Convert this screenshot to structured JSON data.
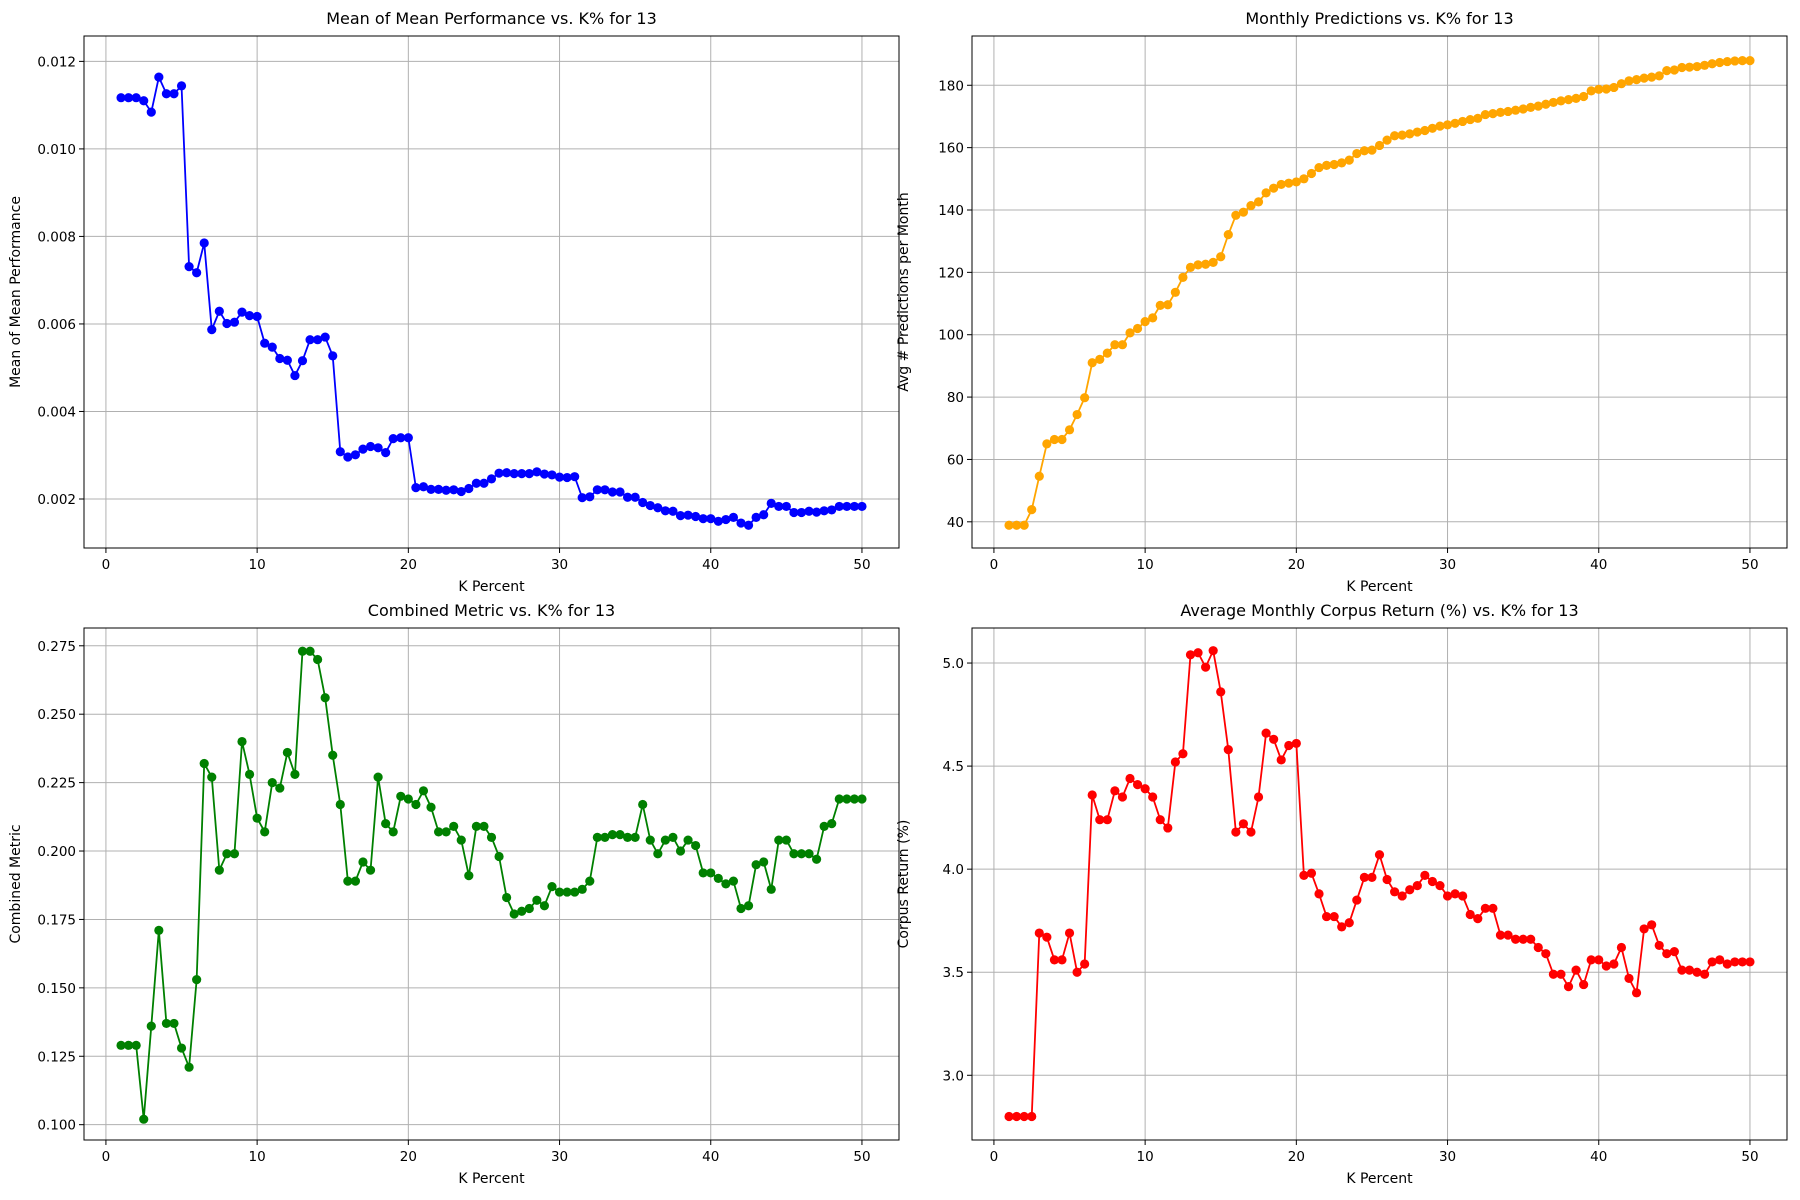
{
  "chart_data": [
    {
      "type": "line",
      "title": "Mean of Mean Performance vs. K% for 13",
      "xlabel": "K Percent",
      "ylabel": "Mean of Mean Performance",
      "color": "#0000ff",
      "xlim": [
        -1.45,
        52.45
      ],
      "ylim": [
        0.00088,
        0.01258
      ],
      "xticks": [
        0,
        10,
        20,
        30,
        40,
        50
      ],
      "yticks": [
        0.002,
        0.004,
        0.006,
        0.008,
        0.01,
        0.012
      ],
      "ytick_labels": [
        "0.002",
        "0.004",
        "0.006",
        "0.008",
        "0.010",
        "0.012"
      ],
      "grid": true,
      "x": [
        1,
        1.5,
        2,
        2.5,
        3,
        3.5,
        4,
        4.5,
        5,
        5.5,
        6,
        6.5,
        7,
        7.5,
        8,
        8.5,
        9,
        9.5,
        10,
        10.5,
        11,
        11.5,
        12,
        12.5,
        13,
        13.5,
        14,
        14.5,
        15,
        15.5,
        16,
        16.5,
        17,
        17.5,
        18,
        18.5,
        19,
        19.5,
        20,
        20.5,
        21,
        21.5,
        22,
        22.5,
        23,
        23.5,
        24,
        24.5,
        25,
        25.5,
        26,
        26.5,
        27,
        27.5,
        28,
        28.5,
        29,
        29.5,
        30,
        30.5,
        31,
        31.5,
        32,
        32.5,
        33,
        33.5,
        34,
        34.5,
        35,
        35.5,
        36,
        36.5,
        37,
        37.5,
        38,
        38.5,
        39,
        39.5,
        40,
        40.5,
        41,
        41.5,
        42,
        42.5,
        43,
        43.5,
        44,
        44.5,
        45,
        45.5,
        46,
        46.5,
        47,
        47.5,
        48,
        48.5,
        49,
        49.5,
        50
      ],
      "values": [
        0.01117,
        0.01117,
        0.01117,
        0.0111,
        0.01084,
        0.01164,
        0.01126,
        0.01126,
        0.01144,
        0.00731,
        0.00717,
        0.00785,
        0.00587,
        0.00629,
        0.00601,
        0.00604,
        0.00627,
        0.00619,
        0.00617,
        0.00556,
        0.00547,
        0.00521,
        0.00517,
        0.00482,
        0.00516,
        0.00564,
        0.00564,
        0.0057,
        0.00527,
        0.00308,
        0.00296,
        0.00301,
        0.00314,
        0.0032,
        0.00317,
        0.00306,
        0.00338,
        0.0034,
        0.0034,
        0.00226,
        0.00228,
        0.00222,
        0.00222,
        0.0022,
        0.00221,
        0.00217,
        0.00224,
        0.00236,
        0.00236,
        0.00246,
        0.00259,
        0.0026,
        0.00258,
        0.00258,
        0.00258,
        0.00262,
        0.00257,
        0.00255,
        0.0025,
        0.00249,
        0.00251,
        0.00203,
        0.00205,
        0.00221,
        0.00221,
        0.00216,
        0.00216,
        0.00204,
        0.00204,
        0.00192,
        0.00185,
        0.0018,
        0.00173,
        0.00172,
        0.00162,
        0.00163,
        0.0016,
        0.00155,
        0.00155,
        0.00149,
        0.00153,
        0.00158,
        0.00145,
        0.0014,
        0.00158,
        0.00164,
        0.0019,
        0.00183,
        0.00183,
        0.00169,
        0.00169,
        0.00172,
        0.0017,
        0.00173,
        0.00175,
        0.00183,
        0.00183,
        0.00183,
        0.00183
      ]
    },
    {
      "type": "line",
      "title": "Monthly Predictions vs. K% for 13",
      "xlabel": "K Percent",
      "ylabel": "Avg # Predictions per Month",
      "color": "#ffa500",
      "xlim": [
        -1.45,
        52.45
      ],
      "ylim": [
        31.6,
        195.8
      ],
      "xticks": [
        0,
        10,
        20,
        30,
        40,
        50
      ],
      "yticks": [
        40,
        60,
        80,
        100,
        120,
        140,
        160,
        180
      ],
      "ytick_labels": [
        "40",
        "60",
        "80",
        "100",
        "120",
        "140",
        "160",
        "180"
      ],
      "grid": true,
      "x": [
        1,
        1.5,
        2,
        2.5,
        3,
        3.5,
        4,
        4.5,
        5,
        5.5,
        6,
        6.5,
        7,
        7.5,
        8,
        8.5,
        9,
        9.5,
        10,
        10.5,
        11,
        11.5,
        12,
        12.5,
        13,
        13.5,
        14,
        14.5,
        15,
        15.5,
        16,
        16.5,
        17,
        17.5,
        18,
        18.5,
        19,
        19.5,
        20,
        20.5,
        21,
        21.5,
        22,
        22.5,
        23,
        23.5,
        24,
        24.5,
        25,
        25.5,
        26,
        26.5,
        27,
        27.5,
        28,
        28.5,
        29,
        29.5,
        30,
        30.5,
        31,
        31.5,
        32,
        32.5,
        33,
        33.5,
        34,
        34.5,
        35,
        35.5,
        36,
        36.5,
        37,
        37.5,
        38,
        38.5,
        39,
        39.5,
        40,
        40.5,
        41,
        41.5,
        42,
        42.5,
        43,
        43.5,
        44,
        44.5,
        45,
        45.5,
        46,
        46.5,
        47,
        47.5,
        48,
        48.5,
        49,
        49.5,
        50
      ],
      "values": [
        38.9,
        38.9,
        38.9,
        43.9,
        54.6,
        65.0,
        66.4,
        66.4,
        69.5,
        74.4,
        79.8,
        91.0,
        92.1,
        94.1,
        96.8,
        96.8,
        100.6,
        102.0,
        104.2,
        105.4,
        109.4,
        109.6,
        113.6,
        118.4,
        121.6,
        122.4,
        122.6,
        123.2,
        125.0,
        132.1,
        138.3,
        139.3,
        141.4,
        142.6,
        145.5,
        147.0,
        148.2,
        148.6,
        149.0,
        150.0,
        151.7,
        153.6,
        154.3,
        154.6,
        155.1,
        156.0,
        158.1,
        159.0,
        159.2,
        160.7,
        162.4,
        163.8,
        164.0,
        164.4,
        165.0,
        165.5,
        166.2,
        166.9,
        167.3,
        167.8,
        168.4,
        169.0,
        169.4,
        170.6,
        170.9,
        171.3,
        171.6,
        172.0,
        172.4,
        172.9,
        173.3,
        173.9,
        174.5,
        175.0,
        175.4,
        175.8,
        176.4,
        178.2,
        178.7,
        178.8,
        179.3,
        180.5,
        181.4,
        181.8,
        182.3,
        182.6,
        183.0,
        184.7,
        184.9,
        185.7,
        185.8,
        186.0,
        186.4,
        186.9,
        187.3,
        187.6,
        187.8,
        187.9,
        187.9
      ]
    },
    {
      "type": "line",
      "title": "Combined Metric vs. K% for 13",
      "xlabel": "K Percent",
      "ylabel": "Combined Metric",
      "color": "#008000",
      "xlim": [
        -1.45,
        52.45
      ],
      "ylim": [
        0.0944,
        0.2815
      ],
      "xticks": [
        0,
        10,
        20,
        30,
        40,
        50
      ],
      "yticks": [
        0.1,
        0.125,
        0.15,
        0.175,
        0.2,
        0.225,
        0.25,
        0.275
      ],
      "ytick_labels": [
        "0.100",
        "0.125",
        "0.150",
        "0.175",
        "0.200",
        "0.225",
        "0.250",
        "0.275"
      ],
      "grid": true,
      "x": [
        1,
        1.5,
        2,
        2.5,
        3,
        3.5,
        4,
        4.5,
        5,
        5.5,
        6,
        6.5,
        7,
        7.5,
        8,
        8.5,
        9,
        9.5,
        10,
        10.5,
        11,
        11.5,
        12,
        12.5,
        13,
        13.5,
        14,
        14.5,
        15,
        15.5,
        16,
        16.5,
        17,
        17.5,
        18,
        18.5,
        19,
        19.5,
        20,
        20.5,
        21,
        21.5,
        22,
        22.5,
        23,
        23.5,
        24,
        24.5,
        25,
        25.5,
        26,
        26.5,
        27,
        27.5,
        28,
        28.5,
        29,
        29.5,
        30,
        30.5,
        31,
        31.5,
        32,
        32.5,
        33,
        33.5,
        34,
        34.5,
        35,
        35.5,
        36,
        36.5,
        37,
        37.5,
        38,
        38.5,
        39,
        39.5,
        40,
        40.5,
        41,
        41.5,
        42,
        42.5,
        43,
        43.5,
        44,
        44.5,
        45,
        45.5,
        46,
        46.5,
        47,
        47.5,
        48,
        48.5,
        49,
        49.5,
        50
      ],
      "values": [
        0.129,
        0.129,
        0.129,
        0.102,
        0.136,
        0.171,
        0.137,
        0.137,
        0.128,
        0.121,
        0.153,
        0.232,
        0.227,
        0.193,
        0.199,
        0.199,
        0.24,
        0.228,
        0.212,
        0.207,
        0.225,
        0.223,
        0.236,
        0.228,
        0.273,
        0.273,
        0.27,
        0.256,
        0.235,
        0.217,
        0.189,
        0.189,
        0.196,
        0.193,
        0.227,
        0.21,
        0.207,
        0.22,
        0.219,
        0.217,
        0.222,
        0.216,
        0.207,
        0.207,
        0.209,
        0.204,
        0.191,
        0.209,
        0.209,
        0.205,
        0.198,
        0.183,
        0.177,
        0.178,
        0.179,
        0.182,
        0.18,
        0.187,
        0.185,
        0.185,
        0.185,
        0.186,
        0.189,
        0.205,
        0.205,
        0.206,
        0.206,
        0.205,
        0.205,
        0.217,
        0.204,
        0.199,
        0.204,
        0.205,
        0.2,
        0.204,
        0.202,
        0.192,
        0.192,
        0.19,
        0.188,
        0.189,
        0.179,
        0.18,
        0.195,
        0.196,
        0.186,
        0.204,
        0.204,
        0.199,
        0.199,
        0.199,
        0.197,
        0.209,
        0.21,
        0.219,
        0.219,
        0.219,
        0.219
      ]
    },
    {
      "type": "line",
      "title": "Average Monthly Corpus Return (%) vs. K%  for 13",
      "xlabel": "K Percent",
      "ylabel": "Corpus Return (%)",
      "color": "#ff0000",
      "xlim": [
        -1.45,
        52.45
      ],
      "ylim": [
        2.686,
        5.17
      ],
      "xticks": [
        0,
        10,
        20,
        30,
        40,
        50
      ],
      "yticks": [
        3.0,
        3.5,
        4.0,
        4.5,
        5.0
      ],
      "ytick_labels": [
        "3.0",
        "3.5",
        "4.0",
        "4.5",
        "5.0"
      ],
      "grid": true,
      "x": [
        1,
        1.5,
        2,
        2.5,
        3,
        3.5,
        4,
        4.5,
        5,
        5.5,
        6,
        6.5,
        7,
        7.5,
        8,
        8.5,
        9,
        9.5,
        10,
        10.5,
        11,
        11.5,
        12,
        12.5,
        13,
        13.5,
        14,
        14.5,
        15,
        15.5,
        16,
        16.5,
        17,
        17.5,
        18,
        18.5,
        19,
        19.5,
        20,
        20.5,
        21,
        21.5,
        22,
        22.5,
        23,
        23.5,
        24,
        24.5,
        25,
        25.5,
        26,
        26.5,
        27,
        27.5,
        28,
        28.5,
        29,
        29.5,
        30,
        30.5,
        31,
        31.5,
        32,
        32.5,
        33,
        33.5,
        34,
        34.5,
        35,
        35.5,
        36,
        36.5,
        37,
        37.5,
        38,
        38.5,
        39,
        39.5,
        40,
        40.5,
        41,
        41.5,
        42,
        42.5,
        43,
        43.5,
        44,
        44.5,
        45,
        45.5,
        46,
        46.5,
        47,
        47.5,
        48,
        48.5,
        49,
        49.5,
        50
      ],
      "values": [
        2.8,
        2.8,
        2.8,
        2.8,
        3.69,
        3.67,
        3.56,
        3.56,
        3.69,
        3.5,
        3.54,
        4.36,
        4.24,
        4.24,
        4.38,
        4.35,
        4.44,
        4.41,
        4.39,
        4.35,
        4.24,
        4.2,
        4.52,
        4.56,
        5.04,
        5.05,
        4.98,
        5.06,
        4.86,
        4.58,
        4.18,
        4.22,
        4.18,
        4.35,
        4.66,
        4.63,
        4.53,
        4.6,
        4.61,
        3.97,
        3.98,
        3.88,
        3.77,
        3.77,
        3.72,
        3.74,
        3.85,
        3.96,
        3.96,
        4.07,
        3.95,
        3.89,
        3.87,
        3.9,
        3.92,
        3.97,
        3.94,
        3.92,
        3.87,
        3.88,
        3.87,
        3.78,
        3.76,
        3.81,
        3.81,
        3.68,
        3.68,
        3.66,
        3.66,
        3.66,
        3.62,
        3.59,
        3.49,
        3.49,
        3.43,
        3.51,
        3.44,
        3.56,
        3.56,
        3.53,
        3.54,
        3.62,
        3.47,
        3.4,
        3.71,
        3.73,
        3.63,
        3.59,
        3.6,
        3.51,
        3.51,
        3.5,
        3.49,
        3.55,
        3.56,
        3.54,
        3.55,
        3.55,
        3.55
      ]
    }
  ]
}
